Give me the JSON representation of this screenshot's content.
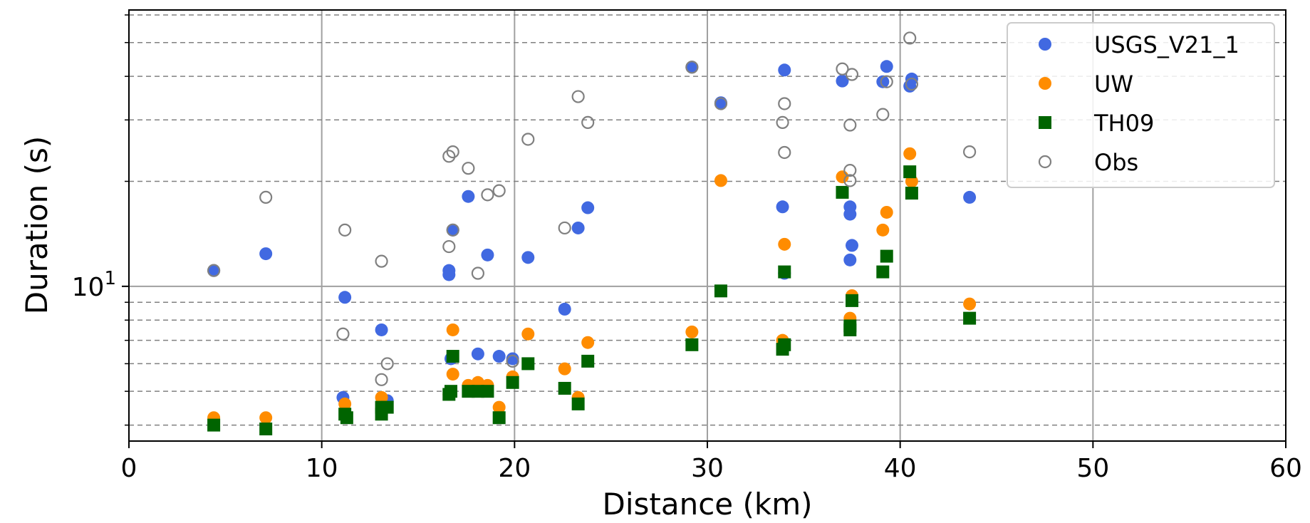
{
  "chart_data": {
    "type": "scatter",
    "title": "",
    "xlabel": "Distance (km)",
    "ylabel": "Duration (s)",
    "xlim": [
      0,
      60
    ],
    "ylim": [
      3.6,
      62
    ],
    "yscale": "log",
    "x_ticks": [
      0,
      10,
      20,
      30,
      40,
      50,
      60
    ],
    "x_tick_labels": [
      "0",
      "10",
      "20",
      "30",
      "40",
      "50",
      "60"
    ],
    "y_major_ticks": [
      10
    ],
    "y_tick_labels": [
      "10^1"
    ],
    "y_minor_ticks": [
      4,
      5,
      6,
      7,
      8,
      9,
      20,
      30,
      40,
      50,
      60
    ],
    "grid": true,
    "legend_position": "top-right",
    "series": [
      {
        "name": "USGS_V21_1",
        "marker": "circle",
        "color": "#4169e1",
        "points": [
          [
            4.4,
            11.1
          ],
          [
            7.1,
            12.4
          ],
          [
            11.2,
            9.3
          ],
          [
            11.1,
            4.8
          ],
          [
            13.1,
            7.5
          ],
          [
            13.4,
            4.7
          ],
          [
            16.6,
            10.8
          ],
          [
            16.6,
            11.1
          ],
          [
            16.7,
            6.2
          ],
          [
            16.8,
            14.5
          ],
          [
            17.6,
            18.1
          ],
          [
            18.1,
            6.4
          ],
          [
            18.6,
            12.3
          ],
          [
            19.2,
            6.3
          ],
          [
            19.9,
            6.2
          ],
          [
            20.7,
            12.1
          ],
          [
            22.6,
            8.6
          ],
          [
            23.3,
            14.7
          ],
          [
            23.8,
            16.8
          ],
          [
            29.2,
            42.5
          ],
          [
            30.7,
            33.6
          ],
          [
            33.9,
            16.9
          ],
          [
            34.0,
            41.7
          ],
          [
            34.0,
            10.9
          ],
          [
            37.0,
            38.8
          ],
          [
            37.4,
            16.9
          ],
          [
            37.4,
            16.1
          ],
          [
            37.4,
            11.9
          ],
          [
            37.5,
            13.1
          ],
          [
            39.1,
            38.6
          ],
          [
            39.3,
            42.7
          ],
          [
            40.5,
            37.5
          ],
          [
            40.6,
            39.3
          ],
          [
            43.6,
            18.0
          ]
        ]
      },
      {
        "name": "UW",
        "marker": "circle",
        "color": "#ff8c00",
        "points": [
          [
            4.4,
            4.2
          ],
          [
            7.1,
            4.2
          ],
          [
            11.2,
            4.6
          ],
          [
            13.1,
            4.8
          ],
          [
            16.6,
            4.9
          ],
          [
            16.8,
            7.5
          ],
          [
            16.8,
            5.6
          ],
          [
            17.6,
            5.2
          ],
          [
            18.1,
            5.3
          ],
          [
            18.6,
            5.2
          ],
          [
            19.2,
            4.5
          ],
          [
            19.9,
            5.5
          ],
          [
            20.7,
            7.3
          ],
          [
            22.6,
            5.8
          ],
          [
            23.3,
            4.8
          ],
          [
            23.8,
            6.9
          ],
          [
            29.2,
            7.4
          ],
          [
            30.7,
            20.1
          ],
          [
            33.9,
            7.0
          ],
          [
            34.0,
            13.2
          ],
          [
            37.0,
            20.6
          ],
          [
            37.4,
            8.1
          ],
          [
            37.5,
            9.4
          ],
          [
            39.1,
            14.5
          ],
          [
            39.3,
            16.3
          ],
          [
            40.5,
            24.0
          ],
          [
            40.6,
            20.0
          ],
          [
            43.6,
            8.9
          ]
        ]
      },
      {
        "name": "TH09",
        "marker": "square",
        "color": "#006400",
        "points": [
          [
            4.4,
            4.0
          ],
          [
            7.1,
            3.9
          ],
          [
            11.2,
            4.3
          ],
          [
            11.3,
            4.2
          ],
          [
            13.1,
            4.3
          ],
          [
            13.1,
            4.5
          ],
          [
            13.4,
            4.5
          ],
          [
            16.6,
            4.9
          ],
          [
            16.7,
            5.0
          ],
          [
            16.8,
            6.3
          ],
          [
            17.6,
            5.0
          ],
          [
            18.1,
            5.0
          ],
          [
            18.6,
            5.0
          ],
          [
            19.2,
            4.2
          ],
          [
            19.9,
            5.3
          ],
          [
            20.7,
            6.0
          ],
          [
            22.6,
            5.1
          ],
          [
            23.3,
            4.6
          ],
          [
            23.8,
            6.1
          ],
          [
            29.2,
            6.8
          ],
          [
            30.7,
            9.7
          ],
          [
            33.9,
            6.6
          ],
          [
            34.0,
            6.8
          ],
          [
            34.0,
            11.0
          ],
          [
            37.0,
            18.6
          ],
          [
            37.4,
            7.5
          ],
          [
            37.4,
            7.7
          ],
          [
            37.5,
            9.1
          ],
          [
            39.1,
            11.0
          ],
          [
            39.3,
            12.2
          ],
          [
            40.5,
            21.3
          ],
          [
            40.6,
            18.5
          ],
          [
            43.6,
            8.1
          ]
        ]
      },
      {
        "name": "Obs",
        "marker": "open-circle",
        "color": "#808080",
        "points": [
          [
            4.4,
            11.1
          ],
          [
            7.1,
            18.0
          ],
          [
            11.2,
            14.5
          ],
          [
            11.1,
            7.3
          ],
          [
            13.1,
            11.8
          ],
          [
            13.1,
            5.4
          ],
          [
            13.4,
            6.0
          ],
          [
            16.6,
            13.0
          ],
          [
            16.6,
            23.6
          ],
          [
            16.8,
            24.3
          ],
          [
            16.8,
            14.5
          ],
          [
            17.6,
            21.8
          ],
          [
            18.1,
            10.9
          ],
          [
            18.6,
            18.3
          ],
          [
            19.2,
            18.8
          ],
          [
            19.9,
            6.1
          ],
          [
            20.7,
            26.4
          ],
          [
            22.6,
            14.7
          ],
          [
            23.3,
            35.0
          ],
          [
            23.8,
            29.5
          ],
          [
            29.2,
            42.5
          ],
          [
            30.7,
            33.4
          ],
          [
            33.9,
            29.5
          ],
          [
            34.0,
            33.4
          ],
          [
            34.0,
            24.2
          ],
          [
            37.0,
            42.0
          ],
          [
            37.4,
            29.0
          ],
          [
            37.4,
            20.1
          ],
          [
            37.4,
            21.5
          ],
          [
            37.5,
            40.5
          ],
          [
            39.1,
            31.1
          ],
          [
            39.3,
            38.6
          ],
          [
            40.5,
            51.5
          ],
          [
            40.6,
            38.0
          ],
          [
            43.6,
            24.3
          ]
        ]
      }
    ]
  }
}
